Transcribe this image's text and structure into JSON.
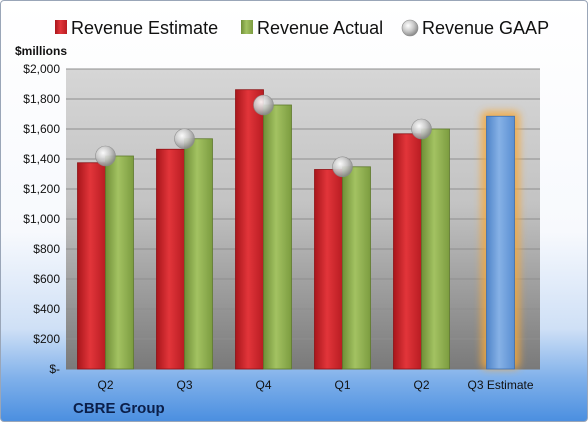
{
  "chart_data": {
    "type": "bar",
    "unit_label": "$millions",
    "company": "CBRE Group",
    "categories": [
      "Q2",
      "Q3",
      "Q4",
      "Q1",
      "Q2",
      "Q3 Estimate"
    ],
    "series": [
      {
        "name": "Revenue Estimate",
        "values": [
          1375,
          1465,
          1862,
          1330,
          1568,
          null
        ],
        "color": "#d9262c"
      },
      {
        "name": "Revenue Actual",
        "values": [
          1420,
          1535,
          1760,
          1348,
          1600,
          null
        ],
        "color": "#8fb04e"
      },
      {
        "name": "Revenue GAAP",
        "values": [
          1420,
          1535,
          1760,
          1348,
          1600,
          null
        ],
        "color": "#c8c8c8"
      }
    ],
    "forecast": {
      "category": "Q3 Estimate",
      "value": 1685,
      "color": "#6f9fd8",
      "glow_color": "#f6a93b"
    },
    "yticks": [
      "$-",
      "$200",
      "$400",
      "$600",
      "$800",
      "$1,000",
      "$1,200",
      "$1,400",
      "$1,600",
      "$1,800",
      "$2,000"
    ],
    "ylim": [
      0,
      2000
    ],
    "grid": true,
    "legend_position": "top"
  }
}
